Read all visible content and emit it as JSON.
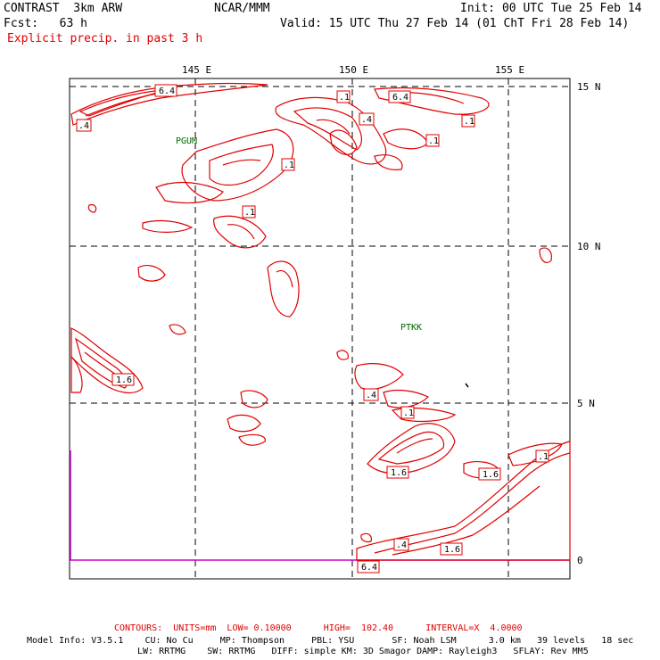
{
  "header": {
    "model": "CONTRAST  3km ARW",
    "org": "NCAR/MMM",
    "init": "Init: 00 UTC Tue 25 Feb 14",
    "fcst": "Fcst:   63 h",
    "valid": "Valid: 15 UTC Thu 27 Feb 14 (01 ChT Fri 28 Feb 14)",
    "field": "Explicit precip. in past 3 h"
  },
  "map": {
    "lon_labels": [
      "145 E",
      "150 E",
      "155 E"
    ],
    "lat_labels": [
      "15 N",
      "10 N",
      "5 N",
      "0"
    ],
    "stations": [
      "PGUM",
      "PTKK"
    ],
    "contour_labels": [
      "6.4",
      ".4",
      ".1",
      "6.4",
      ".1",
      ".4",
      ".1",
      ".1",
      ".1",
      ".1",
      "1.6",
      ".4",
      ".1",
      "1.6",
      ".1",
      "1.6",
      ".4",
      "1.6",
      "6.4"
    ],
    "contour_color": "#e00000",
    "equator_color": "#cc00cc"
  },
  "footer": {
    "contours": "CONTOURS:  UNITS=mm  LOW= 0.10000      HIGH=  102.40      INTERVAL=X  4.0000",
    "model_info": "Model Info: V3.5.1    CU: No Cu     MP: Thompson     PBL: YSU       SF: Noah LSM      3.0 km   39 levels   18 sec",
    "physics": "LW: RRTMG    SW: RRTMG   DIFF: simple KM: 3D Smagor DAMP: Rayleigh3   SFLAY: Rev MM5"
  }
}
